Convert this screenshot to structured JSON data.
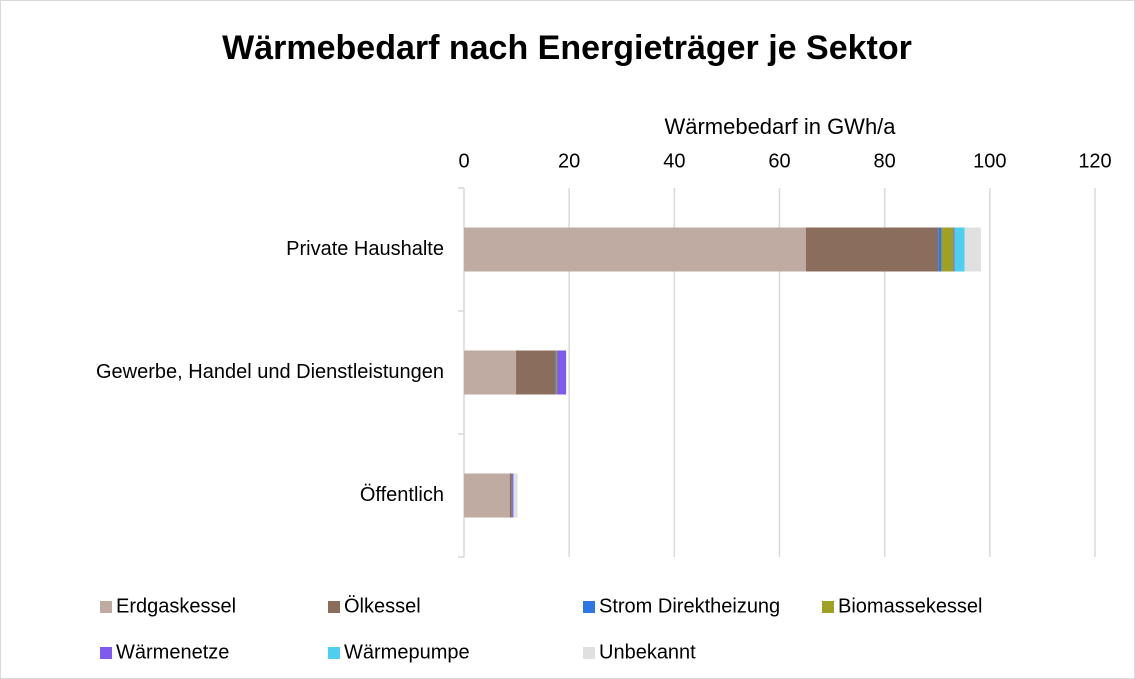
{
  "chart_data": {
    "type": "stacked_barh",
    "title": "Wärmebedarf nach Energieträger je Sektor",
    "x_label": "Wärmebedarf in GWh/a",
    "categories": [
      "Private Haushalte",
      "Gewerbe, Handel und Dienstleistungen",
      "Öffentlich"
    ],
    "series": [
      {
        "name": "Erdgaskessel",
        "color": "#bfaba2",
        "values": [
          65,
          9.9,
          8.7
        ]
      },
      {
        "name": "Ölkessel",
        "color": "#8b6d5e",
        "values": [
          25.2,
          7.4,
          0.4
        ]
      },
      {
        "name": "Strom Direktheizung",
        "color": "#2e75e6",
        "values": [
          0.6,
          0.1,
          0.1
        ]
      },
      {
        "name": "Biomassekessel",
        "color": "#a0a024",
        "values": [
          2.3,
          0.3,
          0
        ]
      },
      {
        "name": "Wärmenetze",
        "color": "#7f5af0",
        "values": [
          0.2,
          1.7,
          0.2
        ]
      },
      {
        "name": "Wärmepumpe",
        "color": "#4dd0f0",
        "values": [
          1.9,
          0,
          0
        ]
      },
      {
        "name": "Unbekannt",
        "color": "#e0e0e0",
        "values": [
          3.1,
          0.1,
          0.8
        ]
      }
    ],
    "xlim": [
      0,
      120
    ],
    "xticks": [
      0,
      20,
      40,
      60,
      80,
      100,
      120
    ],
    "grid": true,
    "legend": "bottom"
  }
}
